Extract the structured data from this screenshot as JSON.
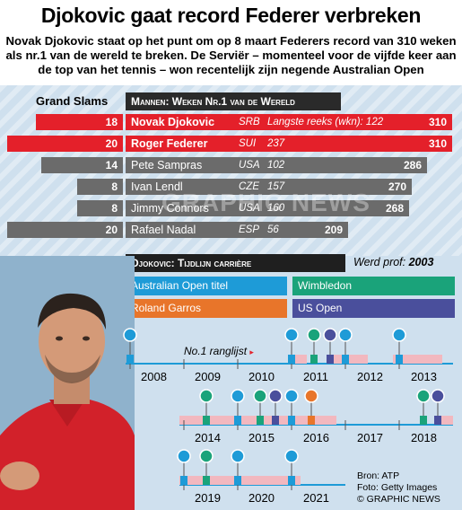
{
  "title": "Djokovic gaat record Federer verbreken",
  "subtitle": "Novak Djokovic staat op het punt om op 8 maart Federers record van 310 weken als nr.1 van de wereld te breken. De Serviër – momenteel voor de vijfde keer aan de top van het tennis – won recentelijk zijn negende Australian Open",
  "table": {
    "grand_slams_header": "Grand Slams",
    "weeks_header": "Mannen: Weken Nr.1 van de Wereld",
    "rows": [
      {
        "slams": "18",
        "name": "Novak Djokovic",
        "country": "SRB",
        "longest": "Langste reeks (wkn): 122",
        "total": "310",
        "highlight": true
      },
      {
        "slams": "20",
        "name": "Roger Federer",
        "country": "SUI",
        "longest": "237",
        "total": "310",
        "highlight": true
      },
      {
        "slams": "14",
        "name": "Pete Sampras",
        "country": "USA",
        "longest": "102",
        "total": "286",
        "highlight": false
      },
      {
        "slams": "8",
        "name": "Ivan Lendl",
        "country": "CZE",
        "longest": "157",
        "total": "270",
        "highlight": false
      },
      {
        "slams": "8",
        "name": "Jimmy Connors",
        "country": "USA",
        "longest": "160",
        "total": "268",
        "highlight": false
      },
      {
        "slams": "20",
        "name": "Rafael Nadal",
        "country": "ESP",
        "longest": "56",
        "total": "209",
        "highlight": false
      }
    ]
  },
  "timeline": {
    "header": "Djokovic: Tijdlijn carrière",
    "pro_label": "Werd prof:",
    "pro_year": "2003",
    "legend": {
      "australian_open": "Australian Open titel",
      "wimbledon": "Wimbledon",
      "roland_garros": "Roland Garros",
      "us_open": "US Open"
    },
    "nr1_label": "No.1 ranglijst",
    "row1_years": [
      "2008",
      "2009",
      "2010",
      "2011",
      "2012",
      "2013"
    ],
    "row2_years": [
      "2014",
      "2015",
      "2016",
      "2017",
      "2018"
    ],
    "row3_years": [
      "2019",
      "2020",
      "2021"
    ]
  },
  "colors": {
    "australian_open": "#1e9bd7",
    "wimbledon": "#1aa37a",
    "roland_garros": "#e8752a",
    "us_open": "#4a4f9c",
    "red": "#e4202a",
    "gray": "#6b6b6b",
    "nr1": "#f2b8bf"
  },
  "source": {
    "bron": "Bron: ATP",
    "foto": "Foto: Getty Images",
    "credit": "© GRAPHIC NEWS"
  },
  "watermark": "GRAPHIC NEWS"
}
